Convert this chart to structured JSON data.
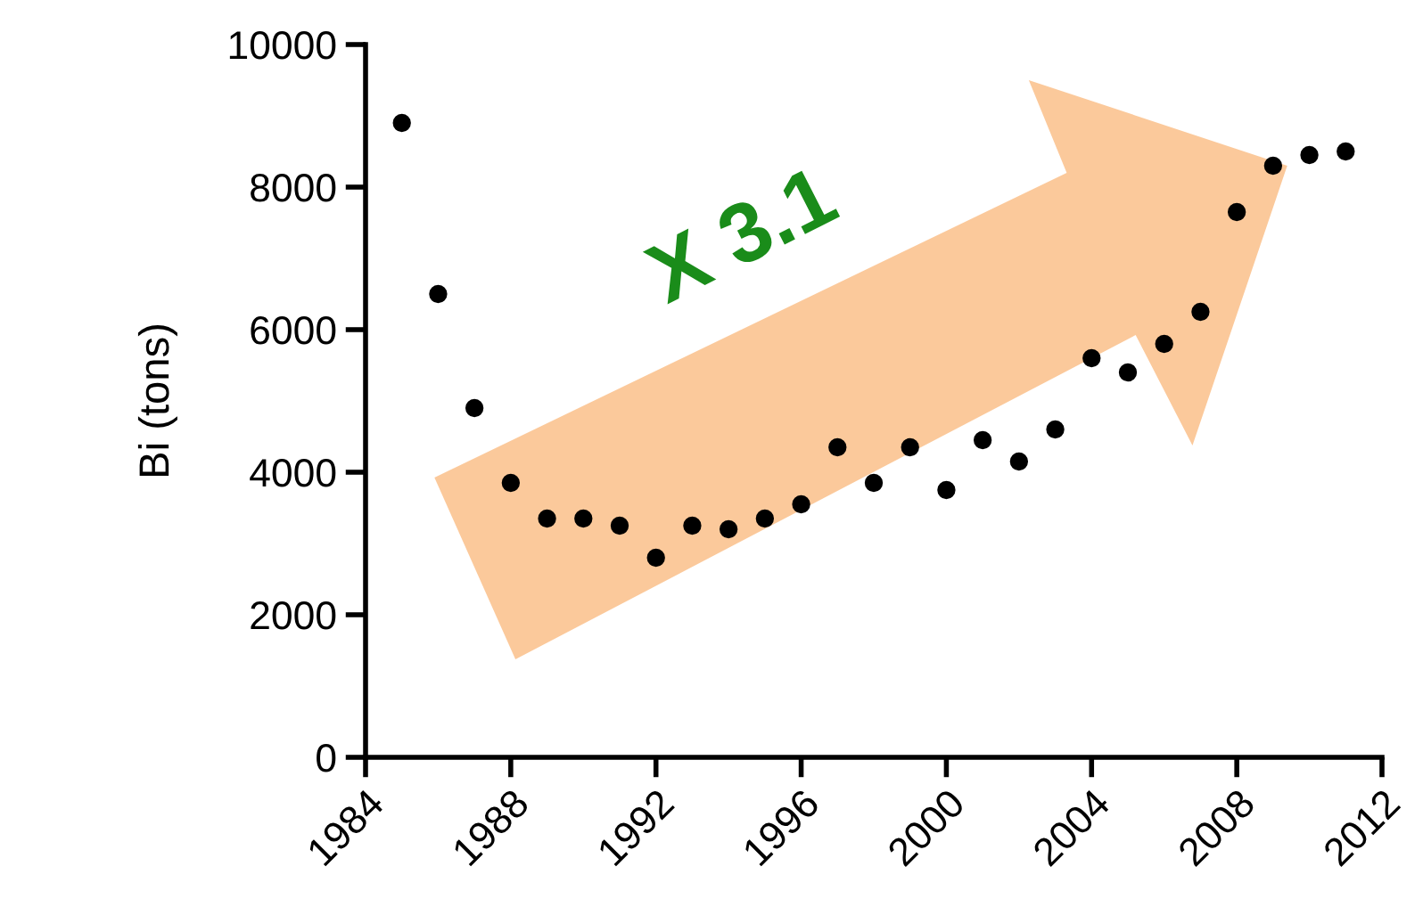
{
  "chart_data": {
    "type": "scatter",
    "ylabel": "Bi (tons)",
    "x": [
      1985,
      1986,
      1987,
      1988,
      1989,
      1990,
      1991,
      1992,
      1993,
      1994,
      1995,
      1996,
      1997,
      1998,
      1999,
      2000,
      2001,
      2002,
      2003,
      2004,
      2005,
      2006,
      2007,
      2008,
      2009,
      2010,
      2011
    ],
    "series": [
      {
        "color": "#000000",
        "values": [
          8900,
          6500,
          4900,
          3850,
          3350,
          3350,
          3250,
          2800,
          3250,
          3200,
          3350,
          3550,
          4350,
          3850,
          4350,
          3750,
          4450,
          4150,
          4600,
          5600,
          5400,
          5800,
          6250,
          7650,
          8300,
          8450,
          8500
        ]
      }
    ],
    "xlim": [
      1984,
      2012
    ],
    "xticks": [
      1984,
      1988,
      1992,
      1996,
      2000,
      2004,
      2008,
      2012
    ],
    "ylim": [
      0,
      10000
    ],
    "yticks": [
      0,
      2000,
      4000,
      6000,
      8000,
      10000
    ],
    "marker": "circle",
    "grid": false,
    "annotations": [
      "X 3.1"
    ]
  }
}
